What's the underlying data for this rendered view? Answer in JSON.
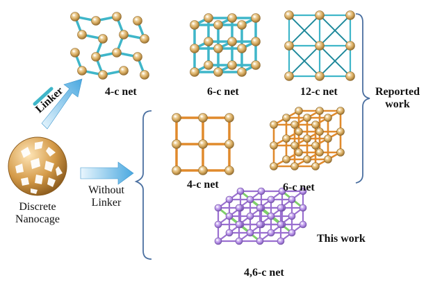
{
  "labels": {
    "net_4c_top": "4-c net",
    "net_6c_top": "6-c net",
    "net_12c_top": "12-c net",
    "net_4c_mid": "4-c net",
    "net_6c_mid": "6-c net",
    "net_46c": "4,6-c net",
    "linker": "Linker",
    "without_linker_1": "Without",
    "without_linker_2": "Linker",
    "discrete_1": "Discrete",
    "discrete_2": "Nanocage",
    "reported_1": "Reported",
    "reported_2": "work",
    "this_work": "This work"
  },
  "colors": {
    "teal_rod": "#3fb6c9",
    "orange_rod": "#e08a2c",
    "purple_rod": "#9a6fd0",
    "green_rod": "#7fd06a",
    "cage_gold": "#d8b070",
    "cage_purple": "#b48ee6",
    "arrow_blue": "#5db7e8",
    "bracket": "#4a6fa0"
  }
}
